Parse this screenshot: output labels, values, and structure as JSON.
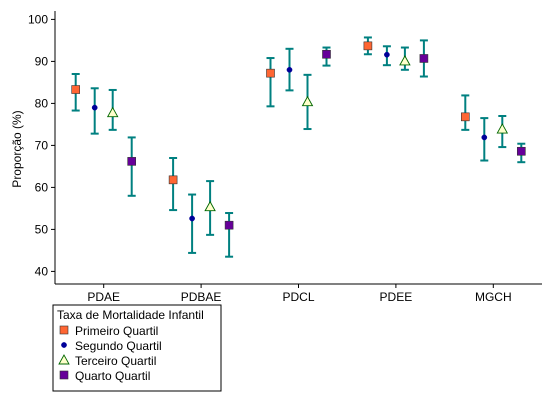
{
  "chart_data": {
    "type": "scatter",
    "ylabel": "Proporção (%)",
    "xlabel": "",
    "ylim": [
      37,
      102
    ],
    "yticks": [
      40,
      50,
      60,
      70,
      80,
      90,
      100
    ],
    "categories": [
      "PDAE",
      "PDBAE",
      "PDCL",
      "PDEE",
      "MGCH"
    ],
    "grid": false,
    "legend": {
      "title": "Taxa de Mortalidade Infantil",
      "placement": "bottom-left"
    },
    "error_bar_color": "#008080",
    "series": [
      {
        "name": "Primeiro Quartil",
        "marker": "square",
        "color": "#FF6633",
        "values": [
          83.3,
          61.8,
          87.2,
          93.7,
          76.8
        ],
        "lower": [
          78.3,
          54.6,
          79.3,
          91.7,
          73.7
        ],
        "upper": [
          87.0,
          67.0,
          90.8,
          95.7,
          81.9
        ]
      },
      {
        "name": "Segundo Quartil",
        "marker": "circle",
        "color": "#000099",
        "values": [
          79.0,
          52.6,
          88.0,
          91.6,
          71.9
        ],
        "lower": [
          72.8,
          44.4,
          83.1,
          89.1,
          66.4
        ],
        "upper": [
          83.6,
          58.3,
          93.0,
          93.6,
          76.5
        ]
      },
      {
        "name": "Terceiro Quartil",
        "marker": "triangle",
        "color": "#FFFFCC",
        "values": [
          77.8,
          55.4,
          80.4,
          90.1,
          73.9
        ],
        "lower": [
          73.7,
          48.7,
          73.9,
          88.0,
          69.6
        ],
        "upper": [
          83.2,
          61.5,
          86.8,
          93.3,
          77.0
        ]
      },
      {
        "name": "Quarto Quartil",
        "marker": "square",
        "color": "#660099",
        "values": [
          66.2,
          51.0,
          91.7,
          90.7,
          68.6
        ],
        "lower": [
          58.0,
          43.5,
          89.0,
          86.4,
          66.0
        ],
        "upper": [
          71.9,
          53.9,
          93.3,
          95.0,
          70.4
        ]
      }
    ]
  }
}
